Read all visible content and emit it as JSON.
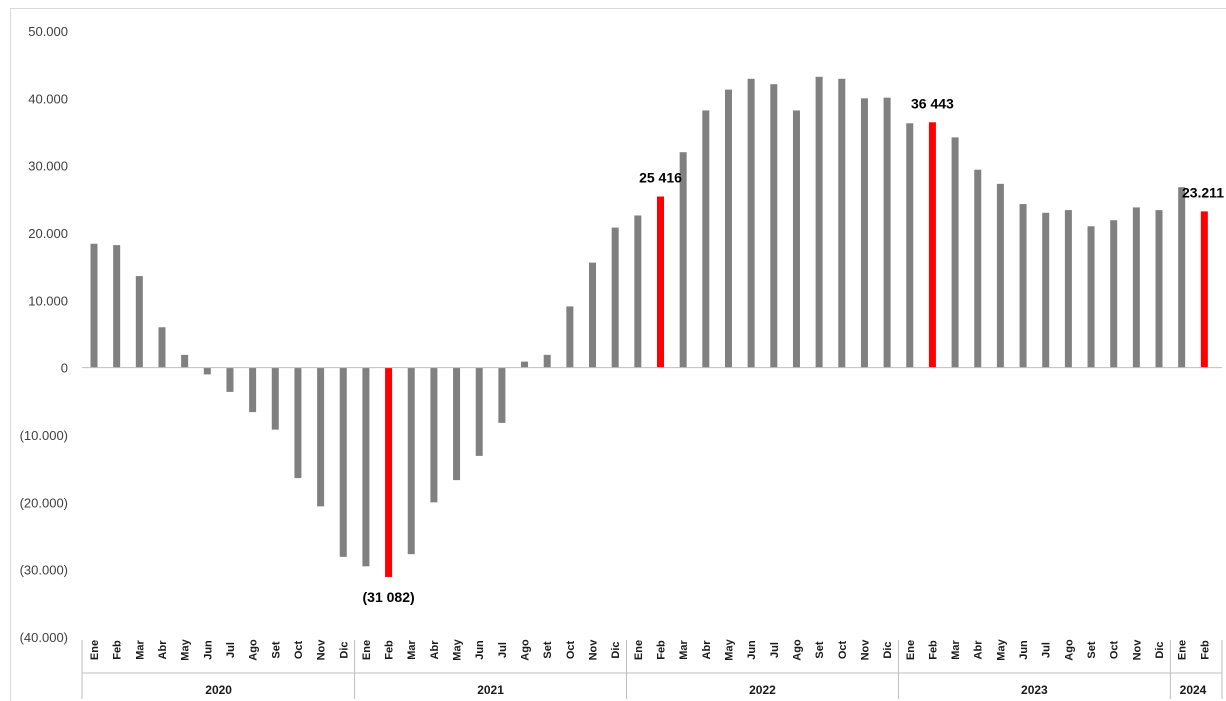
{
  "chart_data": {
    "type": "bar",
    "title": "",
    "xlabel": "",
    "ylabel": "",
    "ylim": [
      -40000,
      50000
    ],
    "yticks": [
      {
        "value": 50000,
        "label": "50.000"
      },
      {
        "value": 40000,
        "label": "40.000"
      },
      {
        "value": 30000,
        "label": "30.000"
      },
      {
        "value": 20000,
        "label": "20.000"
      },
      {
        "value": 10000,
        "label": "10.000"
      },
      {
        "value": 0,
        "label": "0"
      },
      {
        "value": -10000,
        "label": "(10.000)"
      },
      {
        "value": -20000,
        "label": "(20.000)"
      },
      {
        "value": -30000,
        "label": "(30.000)"
      },
      {
        "value": -40000,
        "label": "(40.000)"
      }
    ],
    "grid": false,
    "colors": {
      "default": "#808080",
      "highlight": "#ff0000",
      "axis": "#bfbfbf"
    },
    "years": [
      {
        "label": "2020",
        "count": 12
      },
      {
        "label": "2021",
        "count": 12
      },
      {
        "label": "2022",
        "count": 12
      },
      {
        "label": "2023",
        "count": 12
      },
      {
        "label": "2024",
        "count": 2
      }
    ],
    "categories": [
      "Ene",
      "Feb",
      "Mar",
      "Abr",
      "May",
      "Jun",
      "Jul",
      "Ago",
      "Set",
      "Oct",
      "Nov",
      "Dic",
      "Ene",
      "Feb",
      "Mar",
      "Abr",
      "May",
      "Jun",
      "Jul",
      "Ago",
      "Set",
      "Oct",
      "Nov",
      "Dic",
      "Ene",
      "Feb",
      "Mar",
      "Abr",
      "May",
      "Jun",
      "Jul",
      "Ago",
      "Set",
      "Oct",
      "Nov",
      "Dic",
      "Ene",
      "Feb",
      "Mar",
      "Abr",
      "May",
      "Jun",
      "Jul",
      "Ago",
      "Set",
      "Oct",
      "Nov",
      "Dic",
      "Ene",
      "Feb"
    ],
    "values": [
      18400,
      18200,
      13600,
      6000,
      1900,
      -1000,
      -3600,
      -6600,
      -9200,
      -16400,
      -20600,
      -28100,
      -29500,
      -31082,
      -27700,
      -20000,
      -16700,
      -13100,
      -8200,
      900,
      1900,
      9100,
      15600,
      20800,
      22600,
      25416,
      32000,
      38200,
      41300,
      42900,
      42100,
      38200,
      43200,
      42900,
      40000,
      40100,
      36300,
      36443,
      34200,
      29400,
      27300,
      24300,
      23000,
      23400,
      21000,
      21900,
      23800,
      23400,
      26800,
      23211
    ],
    "highlights": [
      13,
      25,
      37,
      49
    ],
    "data_labels": [
      {
        "index": 13,
        "text": "(31 082)"
      },
      {
        "index": 25,
        "text": "25 416"
      },
      {
        "index": 37,
        "text": "36 443"
      },
      {
        "index": 49,
        "text": "23.211"
      }
    ]
  }
}
